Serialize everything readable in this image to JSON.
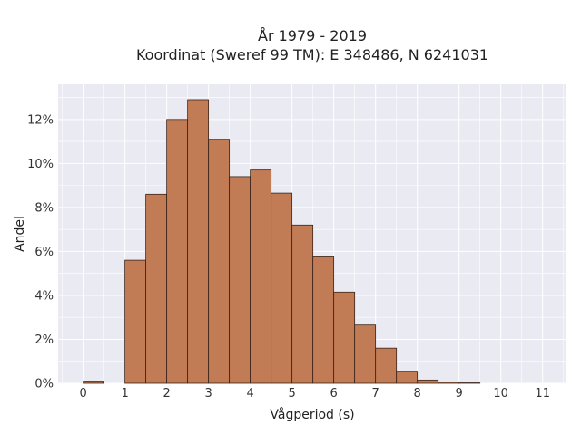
{
  "chart_data": {
    "type": "bar",
    "title": "År 1979 - 2019",
    "subtitle": "Koordinat (Sweref 99 TM): E 348486, N 6241031",
    "xlabel": "Vågperiod (s)",
    "ylabel": "Andel",
    "bin_width": 0.5,
    "bins_left_edge": [
      0,
      0.5,
      1,
      1.5,
      2,
      2.5,
      3,
      3.5,
      4,
      4.5,
      5,
      5.5,
      6,
      6.5,
      7,
      7.5,
      8,
      8.5,
      9,
      9.5,
      10,
      10.5
    ],
    "values": [
      0.1,
      0,
      5.6,
      8.6,
      12.0,
      12.9,
      11.1,
      9.4,
      9.7,
      8.65,
      7.2,
      5.75,
      4.15,
      2.65,
      1.6,
      0.55,
      0.15,
      0.05,
      0.02,
      0,
      0,
      0
    ],
    "xticks": [
      0,
      1,
      2,
      3,
      4,
      5,
      6,
      7,
      8,
      9,
      10,
      11
    ],
    "xlim": [
      -0.6,
      11.55
    ],
    "ylim": [
      0,
      13.6
    ],
    "yticks": [
      0,
      2,
      4,
      6,
      8,
      10,
      12
    ],
    "ytick_suffix": "%",
    "grid": true,
    "bar_color": "#c17b55",
    "edge_color": "#3a2418",
    "background_color": "#eaeaf2"
  }
}
